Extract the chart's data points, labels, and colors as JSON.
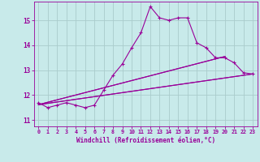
{
  "xlabel": "Windchill (Refroidissement éolien,°C)",
  "bg_color": "#c8eaea",
  "line_color": "#990099",
  "grid_color": "#aacccc",
  "xlim": [
    -0.5,
    23.5
  ],
  "ylim": [
    10.75,
    15.75
  ],
  "yticks": [
    11,
    12,
    13,
    14,
    15
  ],
  "xticks": [
    0,
    1,
    2,
    3,
    4,
    5,
    6,
    7,
    8,
    9,
    10,
    11,
    12,
    13,
    14,
    15,
    16,
    17,
    18,
    19,
    20,
    21,
    22,
    23
  ],
  "curve1_x": [
    0,
    1,
    2,
    3,
    4,
    5,
    6,
    7,
    8,
    9,
    10,
    11,
    12,
    13,
    14,
    15,
    16,
    17,
    18,
    19,
    20,
    21,
    22,
    23
  ],
  "curve1_y": [
    11.7,
    11.5,
    11.6,
    11.7,
    11.6,
    11.5,
    11.6,
    12.2,
    12.8,
    13.25,
    13.9,
    14.5,
    15.55,
    15.1,
    15.0,
    15.1,
    15.1,
    14.1,
    13.9,
    13.5,
    13.5,
    13.3,
    12.9,
    12.85
  ],
  "reg_lines": [
    {
      "x": [
        0,
        23
      ],
      "y": [
        11.62,
        12.85
      ]
    },
    {
      "x": [
        0,
        23
      ],
      "y": [
        11.62,
        12.85
      ]
    },
    {
      "x": [
        0,
        20
      ],
      "y": [
        11.62,
        13.55
      ]
    },
    {
      "x": [
        0,
        20
      ],
      "y": [
        11.62,
        13.55
      ]
    }
  ]
}
